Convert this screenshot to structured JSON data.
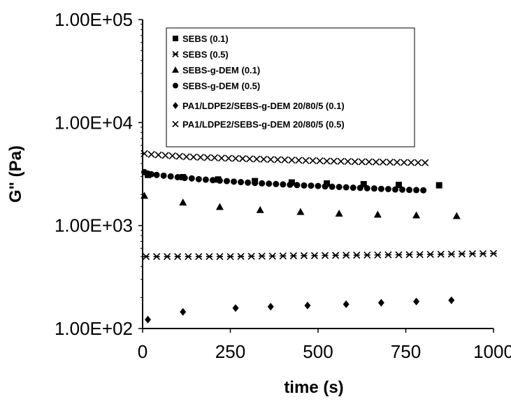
{
  "chart_data": {
    "type": "scatter",
    "title": "",
    "xlabel": "time (s)",
    "ylabel": "G\" (Pa)",
    "xlim": [
      0,
      1000
    ],
    "ylim": [
      100,
      100000
    ],
    "yscale": "log",
    "xticks": [
      "0",
      "250",
      "500",
      "750",
      "1000"
    ],
    "yticks": [
      "1.00E+02",
      "1.00E+03",
      "1.00E+04",
      "1.00E+05"
    ],
    "grid": false,
    "legend_position": "top-right",
    "series": [
      {
        "name": "SEBS (0.1)",
        "marker": "square",
        "x": [
          15,
          115,
          215,
          320,
          425,
          525,
          630,
          730,
          845
        ],
        "y": [
          3100,
          2950,
          2800,
          2700,
          2620,
          2560,
          2520,
          2480,
          2460
        ]
      },
      {
        "name": "SEBS (0.5)",
        "marker": "asterisk",
        "x": [
          10,
          40,
          70,
          100,
          130,
          160,
          190,
          220,
          250,
          280,
          310,
          340,
          370,
          400,
          430,
          460,
          490,
          520,
          550,
          580,
          610,
          640,
          670,
          700,
          730,
          760,
          790,
          820,
          850,
          880,
          910,
          940,
          970,
          1000
        ],
        "y": [
          500,
          500,
          500,
          500,
          500,
          500,
          500,
          500,
          500,
          502,
          503,
          505,
          505,
          507,
          508,
          510,
          510,
          512,
          513,
          515,
          515,
          517,
          518,
          520,
          520,
          522,
          523,
          525,
          527,
          528,
          530,
          532,
          533,
          535
        ]
      },
      {
        "name": "SEBS-g-DEM (0.1)",
        "marker": "triangle",
        "x": [
          5,
          115,
          220,
          335,
          450,
          560,
          670,
          780,
          895
        ],
        "y": [
          1950,
          1680,
          1520,
          1420,
          1360,
          1310,
          1280,
          1260,
          1240
        ]
      },
      {
        "name": "SEBS-g-DEM (0.5)",
        "marker": "circle",
        "x": [
          5,
          15,
          25,
          40,
          60,
          80,
          100,
          120,
          140,
          160,
          180,
          200,
          220,
          240,
          260,
          280,
          300,
          320,
          340,
          360,
          380,
          400,
          420,
          440,
          460,
          480,
          500,
          520,
          540,
          560,
          580,
          600,
          620,
          640,
          660,
          680,
          700,
          720,
          740,
          760,
          780,
          800
        ],
        "y": [
          3300,
          3200,
          3150,
          3100,
          3050,
          3000,
          2950,
          2900,
          2870,
          2820,
          2790,
          2760,
          2730,
          2700,
          2670,
          2640,
          2610,
          2590,
          2570,
          2550,
          2530,
          2510,
          2490,
          2470,
          2450,
          2440,
          2420,
          2400,
          2380,
          2370,
          2350,
          2330,
          2320,
          2300,
          2290,
          2270,
          2260,
          2240,
          2230,
          2220,
          2210,
          2200
        ]
      },
      {
        "name": "PA1/LDPE2/SEBS-g-DEM 20/80/5 (0.1)",
        "marker": "diamond",
        "x": [
          15,
          115,
          265,
          365,
          470,
          580,
          680,
          780,
          880
        ],
        "y": [
          122,
          145,
          158,
          163,
          167,
          172,
          178,
          183,
          188
        ]
      },
      {
        "name": "PA1/LDPE2/SEBS-g-DEM 20/80/5 (0.5)",
        "marker": "x",
        "x": [
          5,
          25,
          45,
          65,
          85,
          105,
          125,
          145,
          165,
          185,
          205,
          225,
          245,
          265,
          285,
          305,
          325,
          345,
          365,
          385,
          405,
          425,
          445,
          465,
          485,
          505,
          525,
          545,
          565,
          585,
          605,
          625,
          645,
          665,
          685,
          705,
          725,
          745,
          765,
          785,
          805
        ],
        "y": [
          5000,
          4900,
          4850,
          4800,
          4750,
          4700,
          4650,
          4620,
          4600,
          4570,
          4550,
          4520,
          4500,
          4480,
          4460,
          4440,
          4420,
          4400,
          4380,
          4360,
          4340,
          4320,
          4300,
          4280,
          4270,
          4250,
          4230,
          4220,
          4200,
          4190,
          4170,
          4160,
          4150,
          4140,
          4130,
          4120,
          4110,
          4100,
          4090,
          4080,
          4070
        ]
      }
    ]
  }
}
